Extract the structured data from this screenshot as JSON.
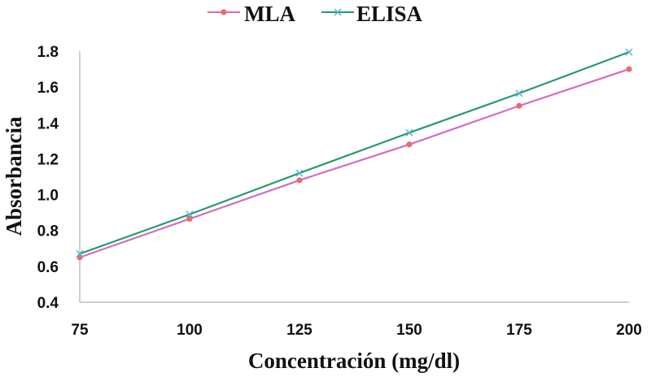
{
  "chart_data": {
    "type": "line",
    "title": "",
    "xlabel": "Concentración (mg/dl)",
    "ylabel": "Absorbancia",
    "x": [
      75,
      100,
      125,
      150,
      175,
      200
    ],
    "xlim": [
      75,
      200
    ],
    "ylim": [
      0.4,
      1.8
    ],
    "xticks": [
      "75",
      "100",
      "125",
      "150",
      "175",
      "200"
    ],
    "yticks": [
      "0.4",
      "0.6",
      "0.8",
      "1.0",
      "1.2",
      "1.4",
      "1.6",
      "1.8"
    ],
    "grid": false,
    "legend_position": "top-center",
    "series": [
      {
        "name": "MLA",
        "color": "#d66bc2",
        "marker_color": "#ec6a6a",
        "marker": "circle",
        "values": [
          0.65,
          0.865,
          1.08,
          1.28,
          1.495,
          1.7
        ]
      },
      {
        "name": "ELISA",
        "color": "#229a6e",
        "marker_color": "#4fb3c8",
        "marker": "x",
        "values": [
          0.67,
          0.89,
          1.12,
          1.345,
          1.565,
          1.795
        ]
      }
    ]
  }
}
